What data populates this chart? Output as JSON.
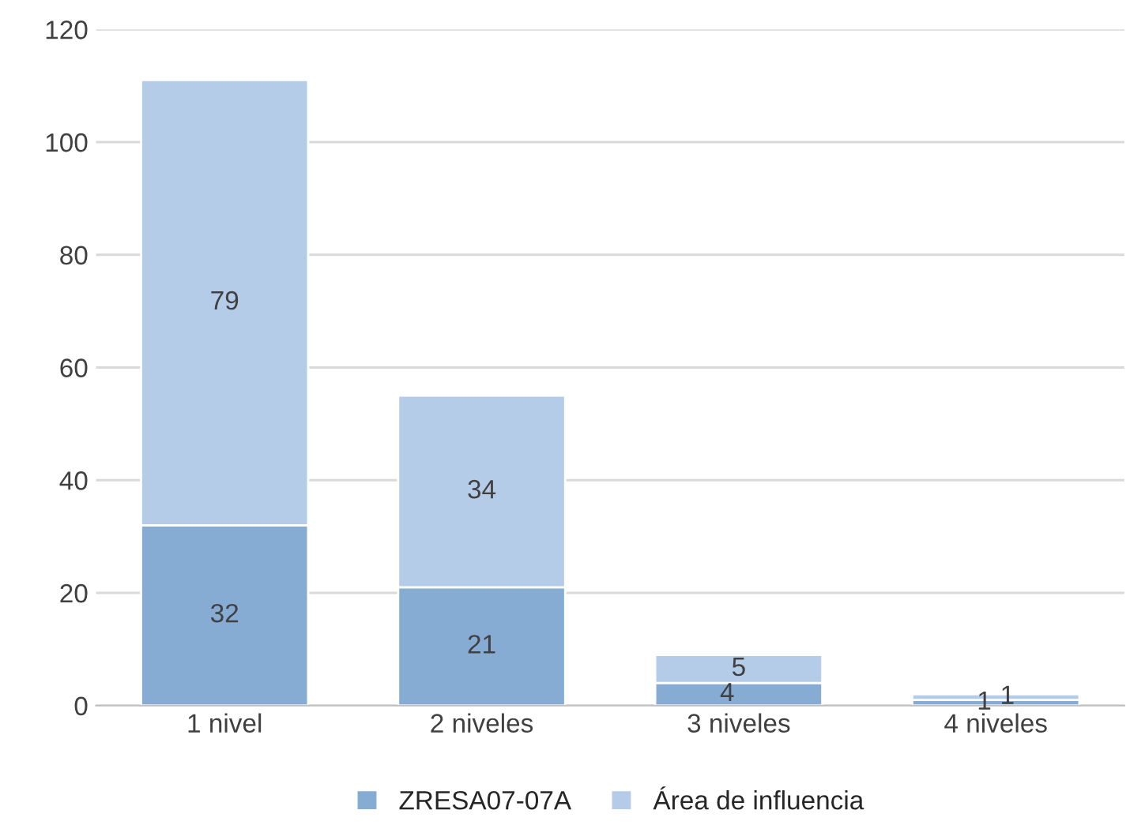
{
  "chart_data": {
    "type": "bar",
    "stacked": true,
    "data_labels": true,
    "categories": [
      "1 nivel",
      "2 niveles",
      "3 niveles",
      "4 niveles"
    ],
    "series": [
      {
        "name": "ZRESA07-07A",
        "color": "#86acd4",
        "values": [
          32,
          21,
          4,
          1
        ]
      },
      {
        "name": "Área de influencia",
        "color": "#b5cce9",
        "values": [
          79,
          34,
          5,
          1
        ]
      }
    ],
    "ylim": [
      0,
      120
    ],
    "yticks": [
      0,
      20,
      40,
      60,
      80,
      100,
      120
    ],
    "grid": "y",
    "legend": "bottom"
  }
}
